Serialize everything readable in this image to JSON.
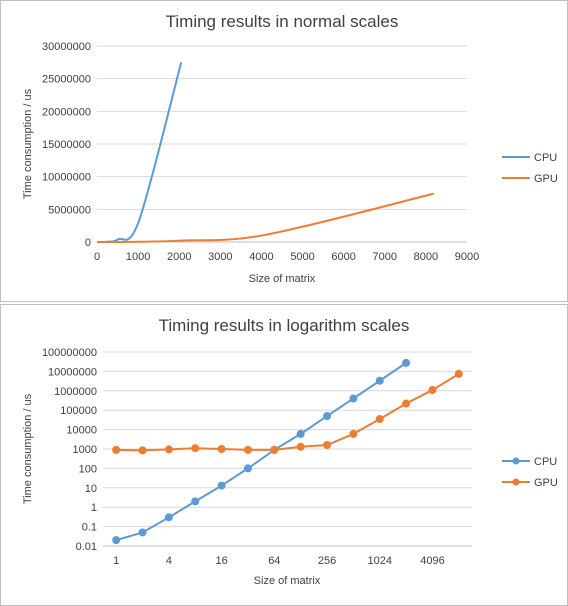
{
  "colors": {
    "cpu": "#5B9BD5",
    "gpu": "#ED7D31",
    "grid": "#d9d9d9",
    "axis": "#bfbfbf",
    "text": "#404040",
    "panel_border": "#bfbfbf"
  },
  "chart_data": [
    {
      "type": "line",
      "title": "Timing results in normal scales",
      "xlabel": "Size of matrix",
      "ylabel": "Time consumption / us",
      "xlim": [
        0,
        9000
      ],
      "ylim": [
        0,
        30000000
      ],
      "x_ticks": [
        0,
        1000,
        2000,
        3000,
        4000,
        5000,
        6000,
        7000,
        8000,
        9000
      ],
      "y_ticks": [
        0,
        5000000,
        10000000,
        15000000,
        20000000,
        25000000,
        30000000
      ],
      "grid": true,
      "legend_position": "right",
      "series": [
        {
          "name": "CPU",
          "x": [
            1,
            2,
            4,
            8,
            16,
            32,
            64,
            128,
            256,
            512,
            1024,
            2048
          ],
          "y": [
            0.02,
            0.05,
            0.3,
            2,
            13,
            100,
            900,
            6000,
            50000,
            400000,
            3300000,
            27500000
          ]
        },
        {
          "name": "GPU",
          "x": [
            1,
            2,
            4,
            8,
            16,
            32,
            64,
            128,
            256,
            512,
            1024,
            2048,
            4096,
            8192
          ],
          "y": [
            900,
            850,
            950,
            1100,
            1000,
            900,
            900,
            1300,
            1600,
            6000,
            35000,
            220000,
            1100000,
            7400000
          ]
        }
      ]
    },
    {
      "type": "line",
      "title": "Timing results in logarithm scales",
      "xlabel": "Size of matrix",
      "ylabel": "Time consumption / us",
      "x_scale": "log2",
      "y_scale": "log10",
      "x_ticks": [
        1,
        4,
        16,
        64,
        256,
        1024,
        4096
      ],
      "y_ticks": [
        0.01,
        0.1,
        1,
        10,
        100,
        1000,
        10000,
        100000,
        1000000,
        10000000,
        100000000
      ],
      "grid": true,
      "legend_position": "right",
      "markers": true,
      "series": [
        {
          "name": "CPU",
          "x": [
            1,
            2,
            4,
            8,
            16,
            32,
            64,
            128,
            256,
            512,
            1024,
            2048
          ],
          "y": [
            0.02,
            0.05,
            0.3,
            2,
            13,
            100,
            900,
            6000,
            50000,
            400000,
            3300000,
            27500000
          ]
        },
        {
          "name": "GPU",
          "x": [
            1,
            2,
            4,
            8,
            16,
            32,
            64,
            128,
            256,
            512,
            1024,
            2048,
            4096,
            8192
          ],
          "y": [
            900,
            850,
            950,
            1100,
            1000,
            900,
            900,
            1300,
            1600,
            6000,
            35000,
            220000,
            1100000,
            7400000
          ]
        }
      ]
    }
  ]
}
